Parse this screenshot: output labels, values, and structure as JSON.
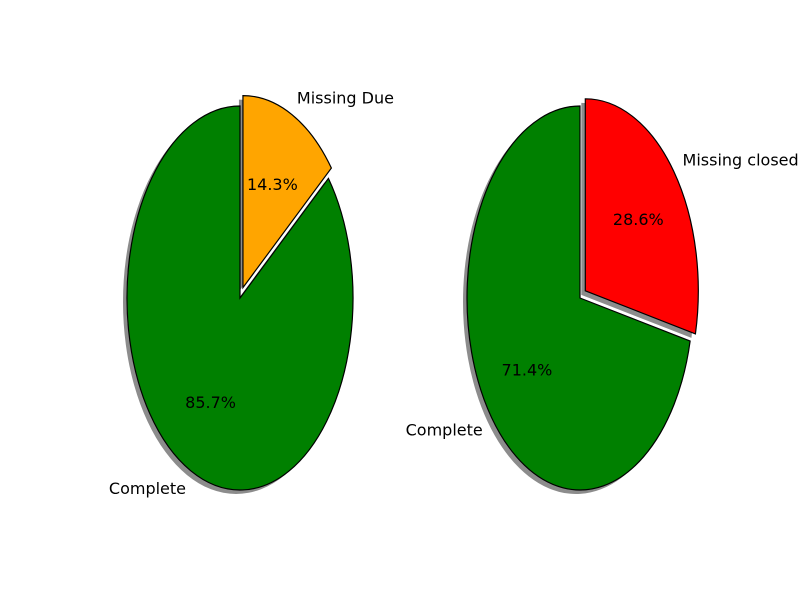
{
  "chart_data": [
    {
      "type": "pie",
      "slices": [
        {
          "label": "Missing Due",
          "value": 14.3,
          "pct_label": "14.3%",
          "color": "#ffa500",
          "exploded": true
        },
        {
          "label": "Complete",
          "value": 85.7,
          "pct_label": "85.7%",
          "color": "#008000",
          "exploded": false
        }
      ],
      "start_angle_deg": 90,
      "direction": "clockwise",
      "shadow": true
    },
    {
      "type": "pie",
      "slices": [
        {
          "label": "Missing closed",
          "value": 28.6,
          "pct_label": "28.6%",
          "color": "#ff0000",
          "exploded": true
        },
        {
          "label": "Complete",
          "value": 71.4,
          "pct_label": "71.4%",
          "color": "#008000",
          "exploded": false
        }
      ],
      "start_angle_deg": 90,
      "direction": "clockwise",
      "shadow": true
    }
  ]
}
